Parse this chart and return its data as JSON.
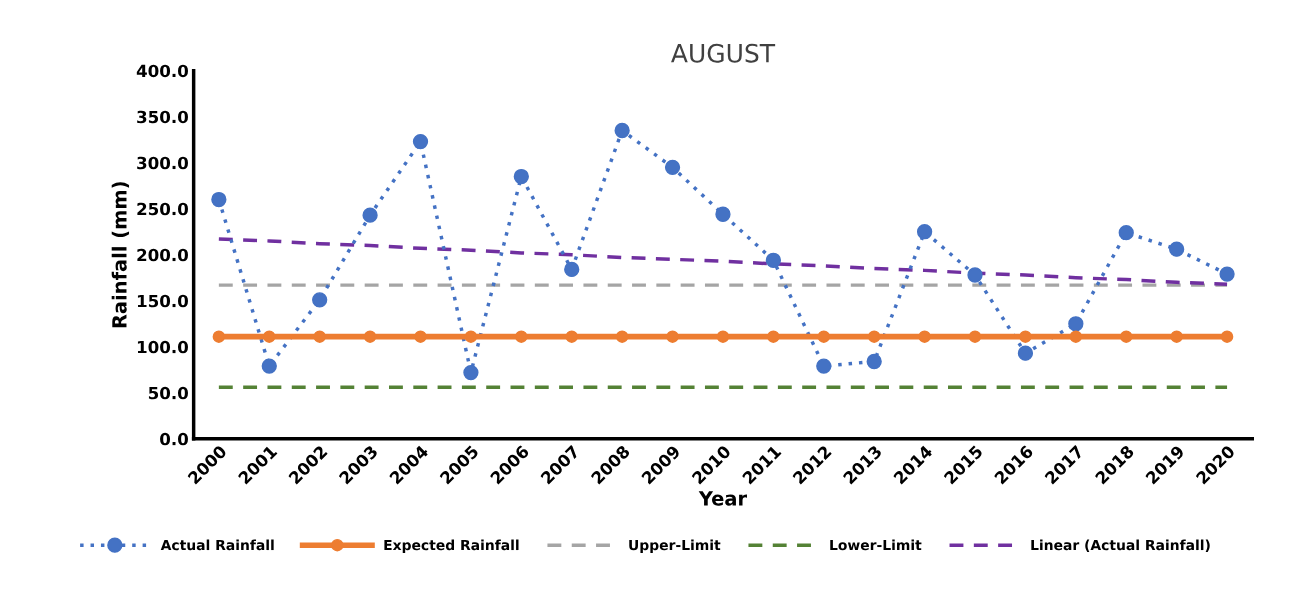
{
  "chart_data": {
    "type": "line",
    "title": "AUGUST",
    "xlabel": "Year",
    "ylabel": "Rainfall (mm)",
    "categories": [
      "2000",
      "2001",
      "2002",
      "2003",
      "2004",
      "2005",
      "2006",
      "2007",
      "2008",
      "2009",
      "2010",
      "2011",
      "2012",
      "2013",
      "2014",
      "2015",
      "2016",
      "2017",
      "2018",
      "2019",
      "2020"
    ],
    "ylim": [
      0,
      400
    ],
    "yticks": [
      {
        "value": 0,
        "label": "0.0"
      },
      {
        "value": 50,
        "label": "50.0"
      },
      {
        "value": 100,
        "label": "100.0"
      },
      {
        "value": 150,
        "label": "150.0"
      },
      {
        "value": 200,
        "label": "200.0"
      },
      {
        "value": 250,
        "label": "250.0"
      },
      {
        "value": 300,
        "label": "300.0"
      },
      {
        "value": 350,
        "label": "350.0"
      },
      {
        "value": 400,
        "label": "400.0"
      }
    ],
    "grid": false,
    "legend": "bottom",
    "series": [
      {
        "name": "Actual Rainfall",
        "color": "#4472c4",
        "marker": "circle",
        "line_style": "dotted",
        "values": [
          260,
          79,
          151,
          243,
          323,
          72,
          285,
          184,
          335,
          295,
          244,
          194,
          79,
          84,
          225,
          178,
          93,
          125,
          224,
          206,
          179
        ]
      },
      {
        "name": "Expected Rainfall",
        "color": "#ed7d31",
        "marker": "circle",
        "line_style": "solid",
        "values": [
          111,
          111,
          111,
          111,
          111,
          111,
          111,
          111,
          111,
          111,
          111,
          111,
          111,
          111,
          111,
          111,
          111,
          111,
          111,
          111,
          111
        ]
      },
      {
        "name": "Upper-Limit",
        "color": "#a5a5a5",
        "marker": "none",
        "line_style": "dashed",
        "values": [
          167,
          167,
          167,
          167,
          167,
          167,
          167,
          167,
          167,
          167,
          167,
          167,
          167,
          167,
          167,
          167,
          167,
          167,
          167,
          167,
          167
        ]
      },
      {
        "name": "Lower-Limit",
        "color": "#548235",
        "marker": "none",
        "line_style": "dashed",
        "values": [
          56,
          56,
          56,
          56,
          56,
          56,
          56,
          56,
          56,
          56,
          56,
          56,
          56,
          56,
          56,
          56,
          56,
          56,
          56,
          56,
          56
        ]
      },
      {
        "name": "Linear (Actual Rainfall)",
        "color": "#7030a0",
        "marker": "none",
        "line_style": "dashed",
        "values": [
          217,
          215,
          212,
          210,
          207,
          205,
          202,
          200,
          197,
          195,
          193,
          190,
          188,
          185,
          183,
          180,
          178,
          175,
          173,
          170,
          168
        ]
      }
    ]
  }
}
